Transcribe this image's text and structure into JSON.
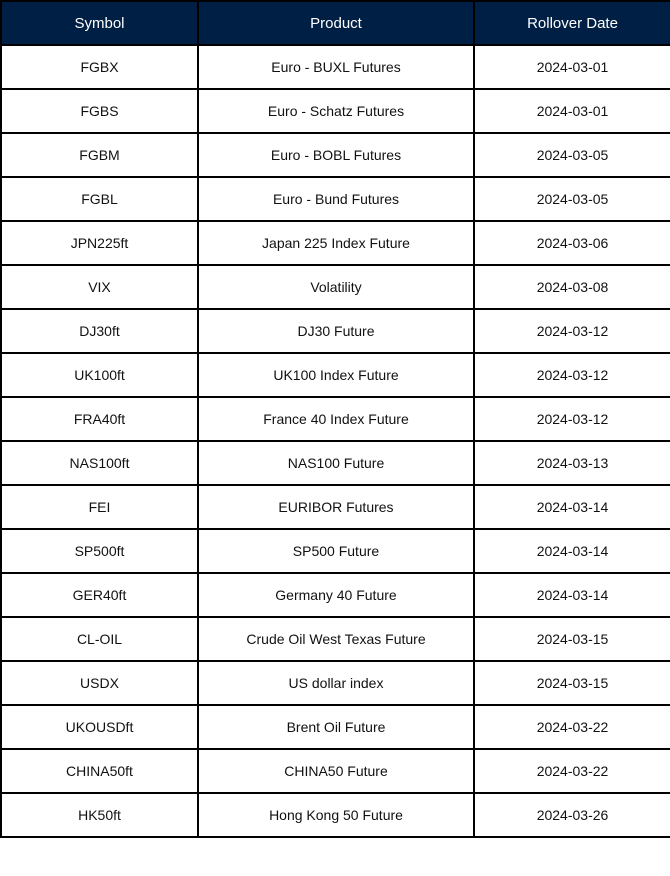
{
  "header": {
    "symbol": "Symbol",
    "product": "Product",
    "rollover_date": "Rollover Date"
  },
  "colors": {
    "header_bg": "#001f45",
    "header_text": "#ffffff",
    "border": "#000000"
  },
  "rows": [
    {
      "symbol": "FGBX",
      "product": "Euro - BUXL Futures",
      "date": "2024-03-01"
    },
    {
      "symbol": "FGBS",
      "product": "Euro - Schatz Futures",
      "date": "2024-03-01"
    },
    {
      "symbol": "FGBM",
      "product": "Euro - BOBL Futures",
      "date": "2024-03-05"
    },
    {
      "symbol": "FGBL",
      "product": "Euro - Bund Futures",
      "date": "2024-03-05"
    },
    {
      "symbol": "JPN225ft",
      "product": "Japan 225 Index Future",
      "date": "2024-03-06"
    },
    {
      "symbol": "VIX",
      "product": "Volatility",
      "date": "2024-03-08"
    },
    {
      "symbol": "DJ30ft",
      "product": "DJ30 Future",
      "date": "2024-03-12"
    },
    {
      "symbol": "UK100ft",
      "product": "UK100 Index Future",
      "date": "2024-03-12"
    },
    {
      "symbol": "FRA40ft",
      "product": "France 40 Index Future",
      "date": "2024-03-12"
    },
    {
      "symbol": "NAS100ft",
      "product": "NAS100 Future",
      "date": "2024-03-13"
    },
    {
      "symbol": "FEI",
      "product": "EURIBOR Futures",
      "date": "2024-03-14"
    },
    {
      "symbol": "SP500ft",
      "product": "SP500 Future",
      "date": "2024-03-14"
    },
    {
      "symbol": "GER40ft",
      "product": "Germany 40 Future",
      "date": "2024-03-14"
    },
    {
      "symbol": "CL-OIL",
      "product": "Crude Oil West Texas Future",
      "date": "2024-03-15"
    },
    {
      "symbol": "USDX",
      "product": "US dollar index",
      "date": "2024-03-15"
    },
    {
      "symbol": "UKOUSDft",
      "product": "Brent Oil Future",
      "date": "2024-03-22"
    },
    {
      "symbol": "CHINA50ft",
      "product": "CHINA50 Future",
      "date": "2024-03-22"
    },
    {
      "symbol": "HK50ft",
      "product": "Hong Kong 50 Future",
      "date": "2024-03-26"
    }
  ]
}
